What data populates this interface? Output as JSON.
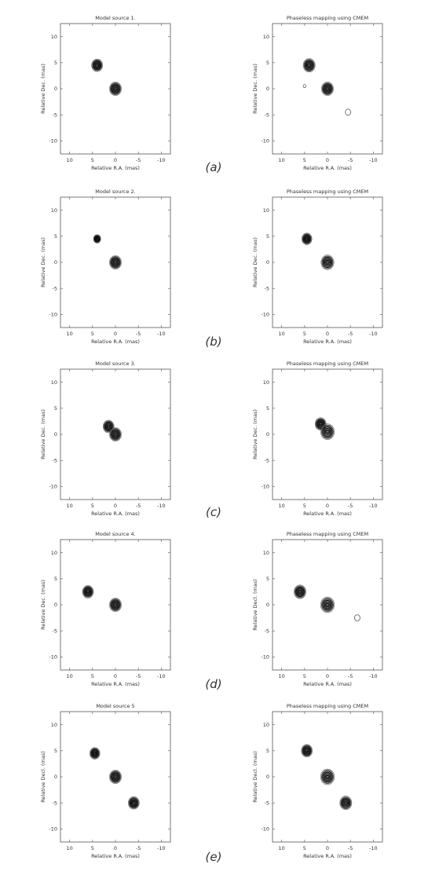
{
  "rows": [
    {
      "caption": "(a)",
      "panels": [
        {
          "title": "Model source 1.",
          "xlabel": "Relative R.A. (mas)",
          "ylabel": "Relative Dec. (mas)",
          "xticks": [
            "10",
            "5",
            "0",
            "-5",
            "-10"
          ],
          "yticks": [
            "10",
            "5",
            "0",
            "-5",
            "-10"
          ]
        },
        {
          "title": "Phaseless mapping using CMEM",
          "xlabel": "Relative R.A. (mas)",
          "ylabel": "Relative Dec. (mas)",
          "xticks": [
            "10",
            "5",
            "0",
            "-5",
            "-10"
          ],
          "yticks": [
            "10",
            "5",
            "0",
            "-5",
            "-10"
          ]
        }
      ]
    },
    {
      "caption": "(b)",
      "panels": [
        {
          "title": "Model source 2.",
          "xlabel": "Relative R.A. (mas)",
          "ylabel": "Relative Dec. (mas)",
          "xticks": [
            "10",
            "5",
            "0",
            "-5",
            "-10"
          ],
          "yticks": [
            "10",
            "5",
            "0",
            "-5",
            "-10"
          ]
        },
        {
          "title": "Phaseless mapping using CMEM",
          "xlabel": "Relative R.A. (mas)",
          "ylabel": "Relative Dec. (mas)",
          "xticks": [
            "10",
            "5",
            "0",
            "-5",
            "-10"
          ],
          "yticks": [
            "10",
            "5",
            "0",
            "-5",
            "-10"
          ]
        }
      ]
    },
    {
      "caption": "(c)",
      "panels": [
        {
          "title": "Model source 3.",
          "xlabel": "Relative R.A. (mas)",
          "ylabel": "Relative Dec. (mas)",
          "xticks": [
            "10",
            "5",
            "0",
            "-5",
            "-10"
          ],
          "yticks": [
            "10",
            "5",
            "0",
            "-5",
            "-10"
          ]
        },
        {
          "title": "Phaseless mapping using CMEM",
          "xlabel": "Relative R.A. (mas)",
          "ylabel": "Relative Dec. (mas)",
          "xticks": [
            "10",
            "5",
            "0",
            "-5",
            "-10"
          ],
          "yticks": [
            "10",
            "5",
            "0",
            "-5",
            "-10"
          ]
        }
      ]
    },
    {
      "caption": "(d)",
      "panels": [
        {
          "title": "Model source 4.",
          "xlabel": "Relative R.A. (mas)",
          "ylabel": "Relative Dec. (mas)",
          "xticks": [
            "10",
            "5",
            "0",
            "-5",
            "-10"
          ],
          "yticks": [
            "10",
            "5",
            "0",
            "-5",
            "-10"
          ]
        },
        {
          "title": "Phaseless mapping using CMEM",
          "xlabel": "Relative R.A. (mas)",
          "ylabel": "Relative Decl. (mas)",
          "xticks": [
            "10",
            "5",
            "0",
            "-5",
            "-10"
          ],
          "yticks": [
            "10",
            "5",
            "0",
            "-5",
            "-10"
          ]
        }
      ]
    },
    {
      "caption": "(e)",
      "panels": [
        {
          "title": "Model source 5",
          "xlabel": "Relative R.A. (mas)",
          "ylabel": "Relative Decl. (mas)",
          "xticks": [
            "10",
            "5",
            "0",
            "-5",
            "-10"
          ],
          "yticks": [
            "10",
            "5",
            "0",
            "-5",
            "-10"
          ]
        },
        {
          "title": "Phaseless mapping using CMEM",
          "xlabel": "Relative R.A. (mas)",
          "ylabel": "Relative Decl. (mas)",
          "xticks": [
            "10",
            "5",
            "0",
            "-5",
            "-10"
          ],
          "yticks": [
            "10",
            "5",
            "0",
            "-5",
            "-10"
          ]
        }
      ]
    }
  ],
  "chart_data": [
    {
      "type": "contour",
      "title": "Model source 1.",
      "xlabel": "Relative R.A. (mas)",
      "ylabel": "Relative Dec. (mas)",
      "xlim": [
        12,
        -12
      ],
      "ylim": [
        -12.5,
        12.5
      ],
      "sources": [
        {
          "x": 4,
          "y": 4.5,
          "r": 1.2
        },
        {
          "x": 0,
          "y": 0,
          "r": 1.3
        }
      ]
    },
    {
      "type": "contour",
      "title": "Phaseless mapping using CMEM",
      "xlabel": "Relative R.A. (mas)",
      "ylabel": "Relative Dec. (mas)",
      "xlim": [
        12,
        -12
      ],
      "ylim": [
        -12.5,
        12.5
      ],
      "sources": [
        {
          "x": 4,
          "y": 4.5,
          "r": 1.3
        },
        {
          "x": 0,
          "y": 0,
          "r": 1.3
        },
        {
          "x": 5,
          "y": 0.5,
          "r": 0.3,
          "faint": true
        },
        {
          "x": -4.5,
          "y": -4.5,
          "r": 0.6,
          "faint": true
        }
      ]
    },
    {
      "type": "contour",
      "title": "Model source 2.",
      "xlabel": "Relative R.A. (mas)",
      "ylabel": "Relative Dec. (mas)",
      "xlim": [
        12,
        -12
      ],
      "ylim": [
        -12.5,
        12.5
      ],
      "sources": [
        {
          "x": 4,
          "y": 4.5,
          "r": 0.8
        },
        {
          "x": 0,
          "y": 0,
          "r": 1.3
        }
      ]
    },
    {
      "type": "contour",
      "title": "Phaseless mapping using CMEM",
      "xlabel": "Relative R.A. (mas)",
      "ylabel": "Relative Dec. (mas)",
      "xlim": [
        12,
        -12
      ],
      "ylim": [
        -12.5,
        12.5
      ],
      "sources": [
        {
          "x": 4.5,
          "y": 4.5,
          "r": 1.1
        },
        {
          "x": 0,
          "y": 0,
          "r": 1.4
        }
      ]
    },
    {
      "type": "contour",
      "title": "Model source 3.",
      "xlabel": "Relative R.A. (mas)",
      "ylabel": "Relative Dec. (mas)",
      "xlim": [
        12,
        -12
      ],
      "ylim": [
        -12.5,
        12.5
      ],
      "sources": [
        {
          "x": 1.5,
          "y": 1.5,
          "r": 1.2
        },
        {
          "x": 0,
          "y": 0,
          "r": 1.3
        }
      ]
    },
    {
      "type": "contour",
      "title": "Phaseless mapping using CMEM",
      "xlabel": "Relative R.A. (mas)",
      "ylabel": "Relative Dec. (mas)",
      "xlim": [
        12,
        -12
      ],
      "ylim": [
        -12.5,
        12.5
      ],
      "sources": [
        {
          "x": 1.5,
          "y": 2,
          "r": 1.2
        },
        {
          "x": 0,
          "y": 0.5,
          "r": 1.5
        }
      ]
    },
    {
      "type": "contour",
      "title": "Model source 4.",
      "xlabel": "Relative R.A. (mas)",
      "ylabel": "Relative Dec. (mas)",
      "xlim": [
        12,
        -12
      ],
      "ylim": [
        -12.5,
        12.5
      ],
      "sources": [
        {
          "x": 6,
          "y": 2.5,
          "r": 1.2
        },
        {
          "x": 0,
          "y": 0,
          "r": 1.3
        }
      ]
    },
    {
      "type": "contour",
      "title": "Phaseless mapping using CMEM",
      "xlabel": "Relative R.A. (mas)",
      "ylabel": "Relative Decl. (mas)",
      "xlim": [
        12,
        -12
      ],
      "ylim": [
        -12.5,
        12.5
      ],
      "sources": [
        {
          "x": 6,
          "y": 2.5,
          "r": 1.3
        },
        {
          "x": 0,
          "y": 0,
          "r": 1.5
        },
        {
          "x": -6.5,
          "y": -2.5,
          "r": 0.6,
          "faint": true
        }
      ]
    },
    {
      "type": "contour",
      "title": "Model source 5",
      "xlabel": "Relative R.A. (mas)",
      "ylabel": "Relative Decl. (mas)",
      "xlim": [
        12,
        -12
      ],
      "ylim": [
        -12.5,
        12.5
      ],
      "sources": [
        {
          "x": 4.5,
          "y": 4.5,
          "r": 1.1
        },
        {
          "x": 0,
          "y": 0,
          "r": 1.3
        },
        {
          "x": -4,
          "y": -5,
          "r": 1.2
        }
      ]
    },
    {
      "type": "contour",
      "title": "Phaseless mapping using CMEM",
      "xlabel": "Relative R.A. (mas)",
      "ylabel": "Relative Decl. (mas)",
      "xlim": [
        12,
        -12
      ],
      "ylim": [
        -12.5,
        12.5
      ],
      "sources": [
        {
          "x": 4.5,
          "y": 5,
          "r": 1.2
        },
        {
          "x": 0,
          "y": 0,
          "r": 1.5
        },
        {
          "x": -4,
          "y": -5,
          "r": 1.3
        }
      ]
    }
  ]
}
